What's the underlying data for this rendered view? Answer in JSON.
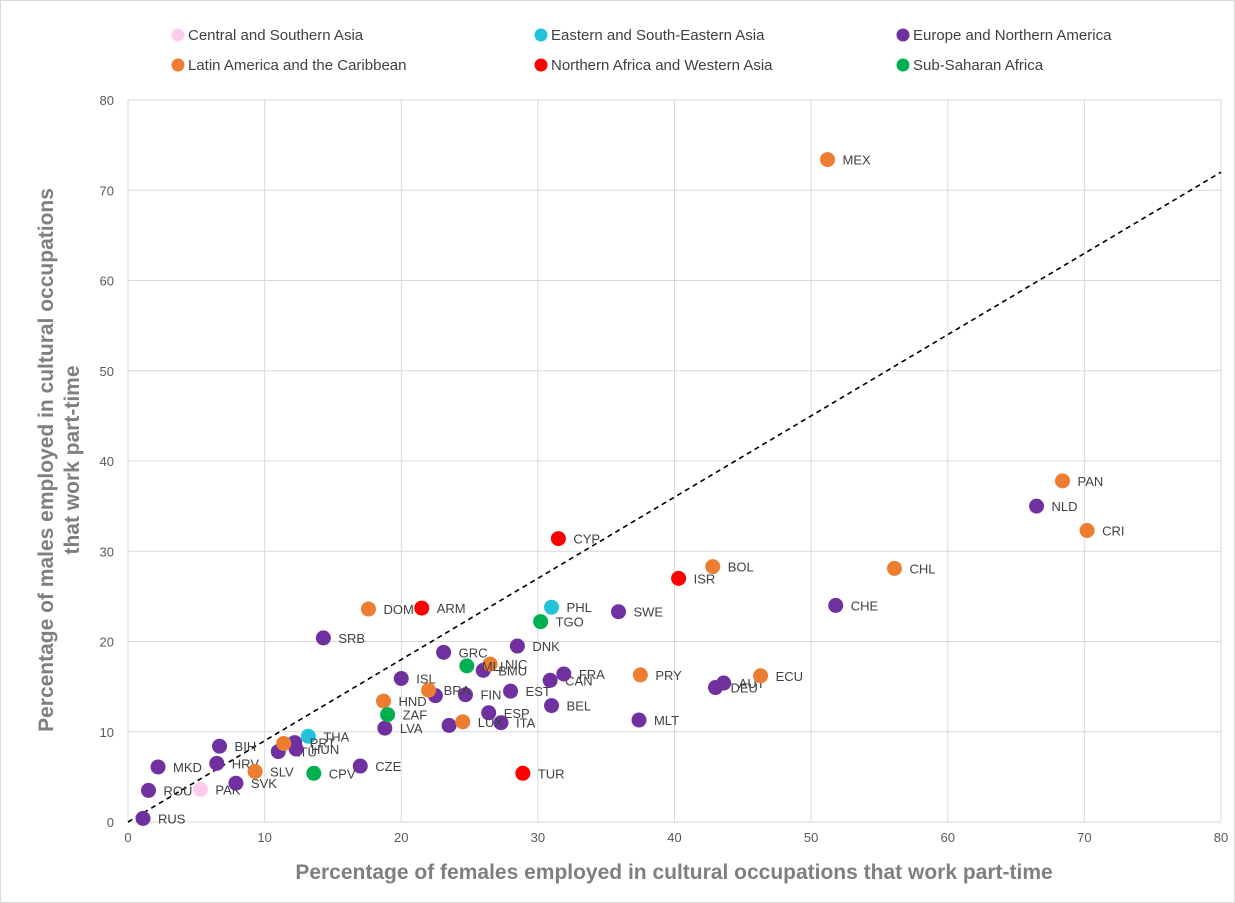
{
  "chart_data": {
    "type": "scatter",
    "xlabel": "Percentage of females employed in cultural occupations that work part-time",
    "ylabel_line1": "Percentage of males employed in cultural occupations",
    "ylabel_line2": "that work part-time",
    "xlim": [
      0,
      80
    ],
    "ylim": [
      0,
      80
    ],
    "xticks": [
      0,
      10,
      20,
      30,
      40,
      50,
      60,
      70,
      80
    ],
    "yticks": [
      0,
      10,
      20,
      30,
      40,
      50,
      60,
      70,
      80
    ],
    "grid": true,
    "legend_position": "top",
    "reference_line": {
      "style": "dashed",
      "x": [
        0,
        80
      ],
      "y": [
        0,
        72
      ]
    },
    "series": [
      {
        "name": "Central and Southern Asia",
        "color": "#ffccee",
        "points": [
          {
            "label": "PAK",
            "x": 5.3,
            "y": 3.6
          }
        ]
      },
      {
        "name": "Eastern and South-Eastern Asia",
        "color": "#22c3da",
        "points": [
          {
            "label": "THA",
            "x": 13.2,
            "y": 9.5
          },
          {
            "label": "PHL",
            "x": 31.0,
            "y": 23.8
          }
        ]
      },
      {
        "name": "Europe and Northern America",
        "color": "#7030a0",
        "points": [
          {
            "label": "RUS",
            "x": 1.1,
            "y": 0.4
          },
          {
            "label": "ROU",
            "x": 1.5,
            "y": 3.5
          },
          {
            "label": "MKD",
            "x": 2.2,
            "y": 6.1
          },
          {
            "label": "BIH",
            "x": 6.7,
            "y": 8.4
          },
          {
            "label": "HRV",
            "x": 6.5,
            "y": 6.5
          },
          {
            "label": "SVK",
            "x": 7.9,
            "y": 4.3
          },
          {
            "label": "LTU",
            "x": 11.0,
            "y": 7.8
          },
          {
            "label": "PRT",
            "x": 12.2,
            "y": 8.8
          },
          {
            "label": "HUN",
            "x": 12.3,
            "y": 8.1
          },
          {
            "label": "SRB",
            "x": 14.3,
            "y": 20.4
          },
          {
            "label": "CZE",
            "x": 17.0,
            "y": 6.2
          },
          {
            "label": "LVA",
            "x": 18.8,
            "y": 10.4
          },
          {
            "label": "ISL",
            "x": 20.0,
            "y": 15.9
          },
          {
            "label": "",
            "x": 22.5,
            "y": 14.0
          },
          {
            "label": "GRC",
            "x": 23.1,
            "y": 18.8
          },
          {
            "label": "",
            "x": 23.5,
            "y": 10.7
          },
          {
            "label": "FIN",
            "x": 24.7,
            "y": 14.1
          },
          {
            "label": "BMU",
            "x": 26.0,
            "y": 16.8
          },
          {
            "label": "ESP",
            "x": 26.4,
            "y": 12.1
          },
          {
            "label": "ITA",
            "x": 27.3,
            "y": 11.0
          },
          {
            "label": "EST",
            "x": 28.0,
            "y": 14.5
          },
          {
            "label": "DNK",
            "x": 28.5,
            "y": 19.5
          },
          {
            "label": "CAN",
            "x": 30.9,
            "y": 15.7
          },
          {
            "label": "BEL",
            "x": 31.0,
            "y": 12.9
          },
          {
            "label": "FRA",
            "x": 31.9,
            "y": 16.4
          },
          {
            "label": "SWE",
            "x": 35.9,
            "y": 23.3
          },
          {
            "label": "MLT",
            "x": 37.4,
            "y": 11.3
          },
          {
            "label": "DEU",
            "x": 43.0,
            "y": 14.9
          },
          {
            "label": "AUT",
            "x": 43.6,
            "y": 15.4
          },
          {
            "label": "CHE",
            "x": 51.8,
            "y": 24.0
          },
          {
            "label": "NLD",
            "x": 66.5,
            "y": 35.0
          }
        ]
      },
      {
        "name": "Latin America and the Caribbean",
        "color": "#ed7d31",
        "points": [
          {
            "label": "SLV",
            "x": 9.3,
            "y": 5.6
          },
          {
            "label": "",
            "x": 11.4,
            "y": 8.7
          },
          {
            "label": "DOM",
            "x": 17.6,
            "y": 23.6
          },
          {
            "label": "HND",
            "x": 18.7,
            "y": 13.4
          },
          {
            "label": "BRA",
            "x": 22.0,
            "y": 14.6
          },
          {
            "label": "LUX",
            "x": 24.5,
            "y": 11.1
          },
          {
            "label": "NIC",
            "x": 26.5,
            "y": 17.5
          },
          {
            "label": "PRY",
            "x": 37.5,
            "y": 16.3
          },
          {
            "label": "BOL",
            "x": 42.8,
            "y": 28.3
          },
          {
            "label": "ECU",
            "x": 46.3,
            "y": 16.2
          },
          {
            "label": "MEX",
            "x": 51.2,
            "y": 73.4
          },
          {
            "label": "CHL",
            "x": 56.1,
            "y": 28.1
          },
          {
            "label": "PAN",
            "x": 68.4,
            "y": 37.8
          },
          {
            "label": "CRI",
            "x": 70.2,
            "y": 32.3
          }
        ]
      },
      {
        "name": "Northern Africa and Western Asia",
        "color": "#ff0000",
        "points": [
          {
            "label": "ARM",
            "x": 21.5,
            "y": 23.7
          },
          {
            "label": "TUR",
            "x": 28.9,
            "y": 5.4
          },
          {
            "label": "CYP",
            "x": 31.5,
            "y": 31.4
          },
          {
            "label": "ISR",
            "x": 40.3,
            "y": 27.0
          }
        ]
      },
      {
        "name": "Sub-Saharan Africa",
        "color": "#00b050",
        "points": [
          {
            "label": "CPV",
            "x": 13.6,
            "y": 5.4
          },
          {
            "label": "ZAF",
            "x": 19.0,
            "y": 11.9
          },
          {
            "label": "MLI",
            "x": 24.8,
            "y": 17.3
          },
          {
            "label": "TGO",
            "x": 30.2,
            "y": 22.2
          }
        ]
      }
    ]
  }
}
